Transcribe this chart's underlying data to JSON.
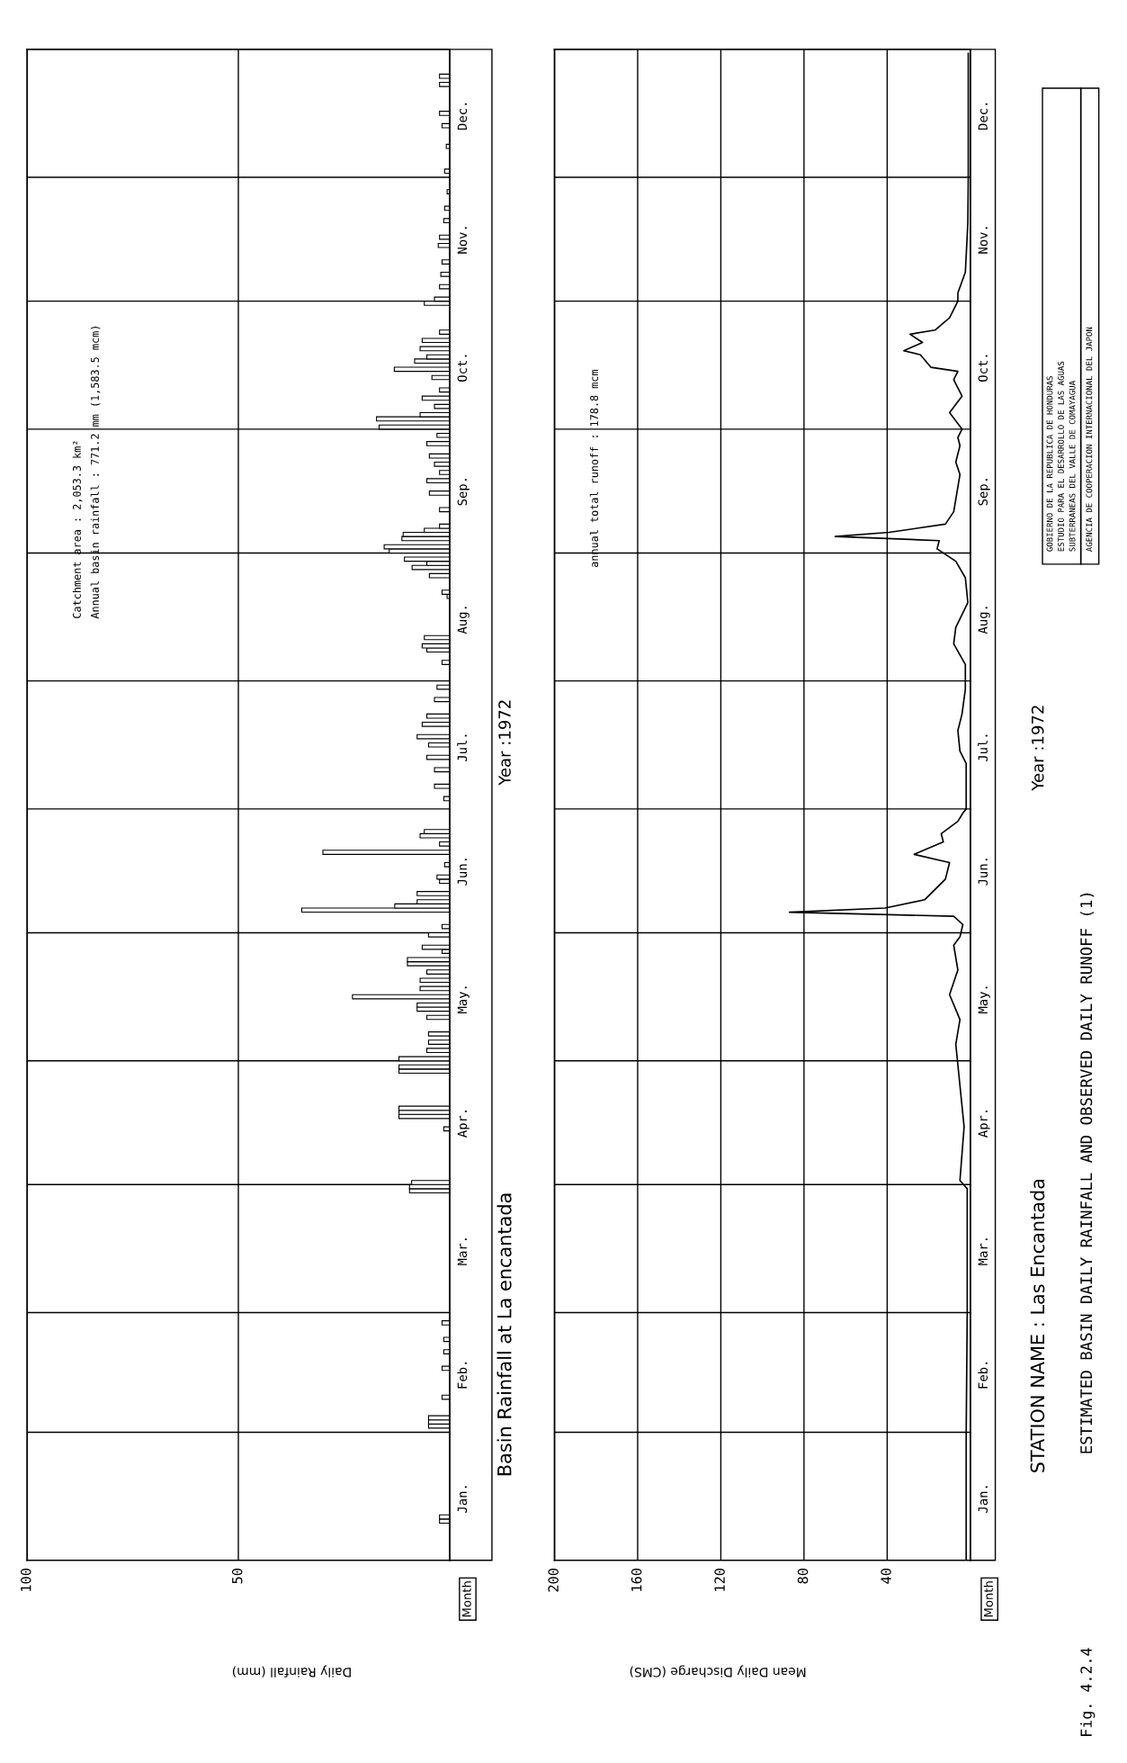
{
  "chart_data": [
    {
      "type": "bar",
      "ylabel": "Month",
      "xlabel": "Daily Rainfall (mm)",
      "annotations": [
        "Basin Rainfall at La encantada",
        "Year :1972",
        "Catchment area : 2,053.3 km²",
        "Annual basin rainfall : 771.2 mm (1,583.5 mcm)"
      ],
      "x": [
        "1972-01-10",
        "1972-01-11",
        "1972-02-02",
        "1972-02-03",
        "1972-02-04",
        "1972-02-09",
        "1972-02-16",
        "1972-02-20",
        "1972-02-23",
        "1972-02-27",
        "1972-03-30",
        "1972-03-31",
        "1972-04-01",
        "1972-04-14",
        "1972-04-17",
        "1972-04-18",
        "1972-04-19",
        "1972-04-28",
        "1972-04-29",
        "1972-05-01",
        "1972-05-03",
        "1972-05-05",
        "1972-05-07",
        "1972-05-11",
        "1972-05-13",
        "1972-05-14",
        "1972-05-16",
        "1972-05-18",
        "1972-05-20",
        "1972-05-22",
        "1972-05-24",
        "1972-05-25",
        "1972-05-27",
        "1972-05-28",
        "1972-05-31",
        "1972-06-02",
        "1972-06-06",
        "1972-06-07",
        "1972-06-08",
        "1972-06-10",
        "1972-06-13",
        "1972-06-14",
        "1972-06-17",
        "1972-06-20",
        "1972-06-22",
        "1972-06-24",
        "1972-06-25",
        "1972-07-03",
        "1972-07-06",
        "1972-07-10",
        "1972-07-13",
        "1972-07-16",
        "1972-07-18",
        "1972-07-21",
        "1972-07-23",
        "1972-07-27",
        "1972-07-30",
        "1972-08-05",
        "1972-08-08",
        "1972-08-09",
        "1972-08-11",
        "1972-08-21",
        "1972-08-22",
        "1972-08-26",
        "1972-08-28",
        "1972-08-29",
        "1972-08-30",
        "1972-09-01",
        "1972-09-02",
        "1972-09-04",
        "1972-09-05",
        "1972-09-06",
        "1972-09-07",
        "1972-09-11",
        "1972-09-15",
        "1972-09-18",
        "1972-09-20",
        "1972-09-22",
        "1972-09-24",
        "1972-09-27",
        "1972-09-29",
        "1972-10-01",
        "1972-10-03",
        "1972-10-04",
        "1972-10-06",
        "1972-10-08",
        "1972-10-10",
        "1972-10-13",
        "1972-10-15",
        "1972-10-17",
        "1972-10-18",
        "1972-10-20",
        "1972-10-22",
        "1972-10-24",
        "1972-10-31",
        "1972-11-01",
        "1972-11-04",
        "1972-11-07",
        "1972-11-10",
        "1972-11-14",
        "1972-11-16",
        "1972-11-20",
        "1972-11-23",
        "1972-11-27",
        "1972-12-02",
        "1972-12-08",
        "1972-12-13",
        "1972-12-16",
        "1972-12-23",
        "1972-12-25"
      ],
      "values": [
        2.4,
        2.4,
        5,
        5,
        5,
        1.8,
        1.8,
        1.4,
        1.4,
        1.8,
        9.5,
        9.5,
        9,
        1.4,
        12,
        12,
        12,
        12,
        12,
        12,
        5.4,
        5,
        5,
        5.4,
        7.7,
        7.7,
        23,
        7,
        7,
        5.4,
        10,
        10,
        1.8,
        6.5,
        5,
        1.8,
        35,
        13,
        7.7,
        7.7,
        2.4,
        3,
        1.2,
        30,
        2.4,
        7,
        6,
        1.4,
        3.6,
        3.6,
        5.4,
        5,
        7.7,
        6.5,
        5.4,
        3.6,
        3,
        1.8,
        5.4,
        6.5,
        6,
        0.6,
        1.8,
        4.8,
        8.9,
        5.4,
        10.7,
        14.3,
        15.5,
        11.3,
        11,
        6,
        2.4,
        2.4,
        4.8,
        5.4,
        2.4,
        3.6,
        4.8,
        5.4,
        3,
        16.7,
        17.3,
        7,
        3.6,
        6.5,
        2.4,
        4.2,
        13.1,
        8.3,
        5.4,
        7,
        6.5,
        2.4,
        6,
        3.6,
        2.4,
        2.1,
        1.8,
        2.7,
        2.4,
        1.4,
        1.2,
        0.6,
        1.2,
        0.8,
        1.8,
        2.4,
        2.4,
        2.4
      ],
      "color": "#000000",
      "orientation": "horizontal",
      "ylim": [
        "1972-01-01",
        "1973-01-01"
      ],
      "yticks": [
        {
          "value": "1972-02-01",
          "label": null
        },
        {
          "value": "1972-03-01",
          "label": null
        },
        {
          "value": "1972-04-01",
          "label": null
        },
        {
          "value": "1972-05-01",
          "label": null
        },
        {
          "value": "1972-06-01",
          "label": null
        },
        {
          "value": "1972-07-01",
          "label": null
        },
        {
          "value": "1972-08-01",
          "label": null
        },
        {
          "value": "1972-09-01",
          "label": null
        },
        {
          "value": "1972-10-01",
          "label": null
        },
        {
          "value": "1972-11-01",
          "label": null
        },
        {
          "value": "1972-12-01",
          "label": null
        },
        {
          "value": "1972-01-16",
          "label": "Jan."
        },
        {
          "value": "1972-02-15",
          "label": "Feb."
        },
        {
          "value": "1972-03-16",
          "label": "Mar."
        },
        {
          "value": "1972-04-16",
          "label": "Apr."
        },
        {
          "value": "1972-05-16",
          "label": "May."
        },
        {
          "value": "1972-06-16",
          "label": "Jun."
        },
        {
          "value": "1972-07-16",
          "label": "Jul."
        },
        {
          "value": "1972-08-16",
          "label": "Aug."
        },
        {
          "value": "1972-09-16",
          "label": "Sep."
        },
        {
          "value": "1972-10-16",
          "label": "Oct."
        },
        {
          "value": "1972-11-16",
          "label": "Nov."
        },
        {
          "value": "1972-12-16",
          "label": "Dec."
        }
      ],
      "xlim": [
        100,
        0
      ],
      "xticks": [
        100,
        50
      ],
      "grid": true
    },
    {
      "type": "line",
      "ylabel": "Month",
      "xlabel": "Mean Daily Discharge (CMS)",
      "annotations": [
        "STATION NAME : Las Encantada",
        "Year :1972",
        "ESTIMATED BASIN DAILY RAINFALL AND OBSERVED DAILY RUNOFF (1)",
        "Fig. 4.2.4",
        "annual total runoff : 178.8 mcm",
        "GOBIERNO DE LA REPUBLICA DE HONDURAS",
        "ESTUDIO PARA EL DESARROLLO DE LAS AGUAS",
        "SUBTERRANEAS DEL VALLE DE COMAYAGUA",
        "AGENCIA DE COOPERACION INTERNACIONAL DEL JAPON"
      ],
      "x": [
        "1972-01-01",
        "1972-02-01",
        "1972-03-01",
        "1972-03-31",
        "1972-04-02",
        "1972-04-15",
        "1972-04-30",
        "1972-05-05",
        "1972-05-11",
        "1972-05-17",
        "1972-05-23",
        "1972-05-29",
        "1972-05-31",
        "1972-06-03",
        "1972-06-05",
        "1972-06-06",
        "1972-06-07",
        "1972-06-09",
        "1972-06-14",
        "1972-06-18",
        "1972-06-20",
        "1972-06-23",
        "1972-06-25",
        "1972-06-28",
        "1972-06-30",
        "1972-07-01",
        "1972-07-12",
        "1972-07-15",
        "1972-07-20",
        "1972-07-24",
        "1972-07-30",
        "1972-08-05",
        "1972-08-10",
        "1972-08-14",
        "1972-08-20",
        "1972-08-26",
        "1972-08-30",
        "1972-09-02",
        "1972-09-04",
        "1972-09-05",
        "1972-09-06",
        "1972-09-08",
        "1972-09-11",
        "1972-09-17",
        "1972-09-20",
        "1972-09-23",
        "1972-09-27",
        "1972-09-29",
        "1972-10-01",
        "1972-10-05",
        "1972-10-09",
        "1972-10-13",
        "1972-10-15",
        "1972-10-16",
        "1972-10-19",
        "1972-10-20",
        "1972-10-22",
        "1972-10-24",
        "1972-10-25",
        "1972-10-28",
        "1972-11-01",
        "1972-11-03",
        "1972-11-08",
        "1972-11-20",
        "1972-12-01",
        "1972-12-31"
      ],
      "values": [
        2,
        2,
        1.5,
        1.5,
        5,
        3,
        6,
        7,
        5,
        10,
        6,
        8,
        5,
        3.6,
        8,
        87,
        41,
        22,
        12,
        10,
        27,
        13,
        14,
        6,
        3.6,
        2,
        2,
        5,
        6,
        4,
        2.4,
        2.4,
        8,
        7,
        1.2,
        2.4,
        7,
        16,
        15,
        65,
        39,
        12,
        8,
        6,
        5,
        7,
        5,
        6,
        4,
        10,
        4,
        8,
        6,
        19,
        24,
        32,
        23,
        29,
        17,
        10,
        6,
        6,
        2.4,
        1.2,
        1,
        1
      ],
      "color": "#000000",
      "orientation": "horizontal",
      "ylim": [
        "1972-01-01",
        "1973-01-01"
      ],
      "yticks": [
        {
          "value": "1972-02-01",
          "label": null
        },
        {
          "value": "1972-03-01",
          "label": null
        },
        {
          "value": "1972-04-01",
          "label": null
        },
        {
          "value": "1972-05-01",
          "label": null
        },
        {
          "value": "1972-06-01",
          "label": null
        },
        {
          "value": "1972-07-01",
          "label": null
        },
        {
          "value": "1972-08-01",
          "label": null
        },
        {
          "value": "1972-09-01",
          "label": null
        },
        {
          "value": "1972-10-01",
          "label": null
        },
        {
          "value": "1972-11-01",
          "label": null
        },
        {
          "value": "1972-12-01",
          "label": null
        },
        {
          "value": "1972-01-16",
          "label": "Jan."
        },
        {
          "value": "1972-02-15",
          "label": "Feb."
        },
        {
          "value": "1972-03-16",
          "label": "Mar."
        },
        {
          "value": "1972-04-16",
          "label": "Apr."
        },
        {
          "value": "1972-05-16",
          "label": "May."
        },
        {
          "value": "1972-06-16",
          "label": "Jun."
        },
        {
          "value": "1972-07-16",
          "label": "Jul."
        },
        {
          "value": "1972-08-16",
          "label": "Aug."
        },
        {
          "value": "1972-09-16",
          "label": "Sep."
        },
        {
          "value": "1972-10-16",
          "label": "Oct."
        },
        {
          "value": "1972-11-16",
          "label": "Nov."
        },
        {
          "value": "1972-12-16",
          "label": "Dec."
        }
      ],
      "xlim": [
        200,
        0
      ],
      "xticks": [
        200,
        160,
        120,
        80,
        40
      ],
      "grid": true
    }
  ]
}
